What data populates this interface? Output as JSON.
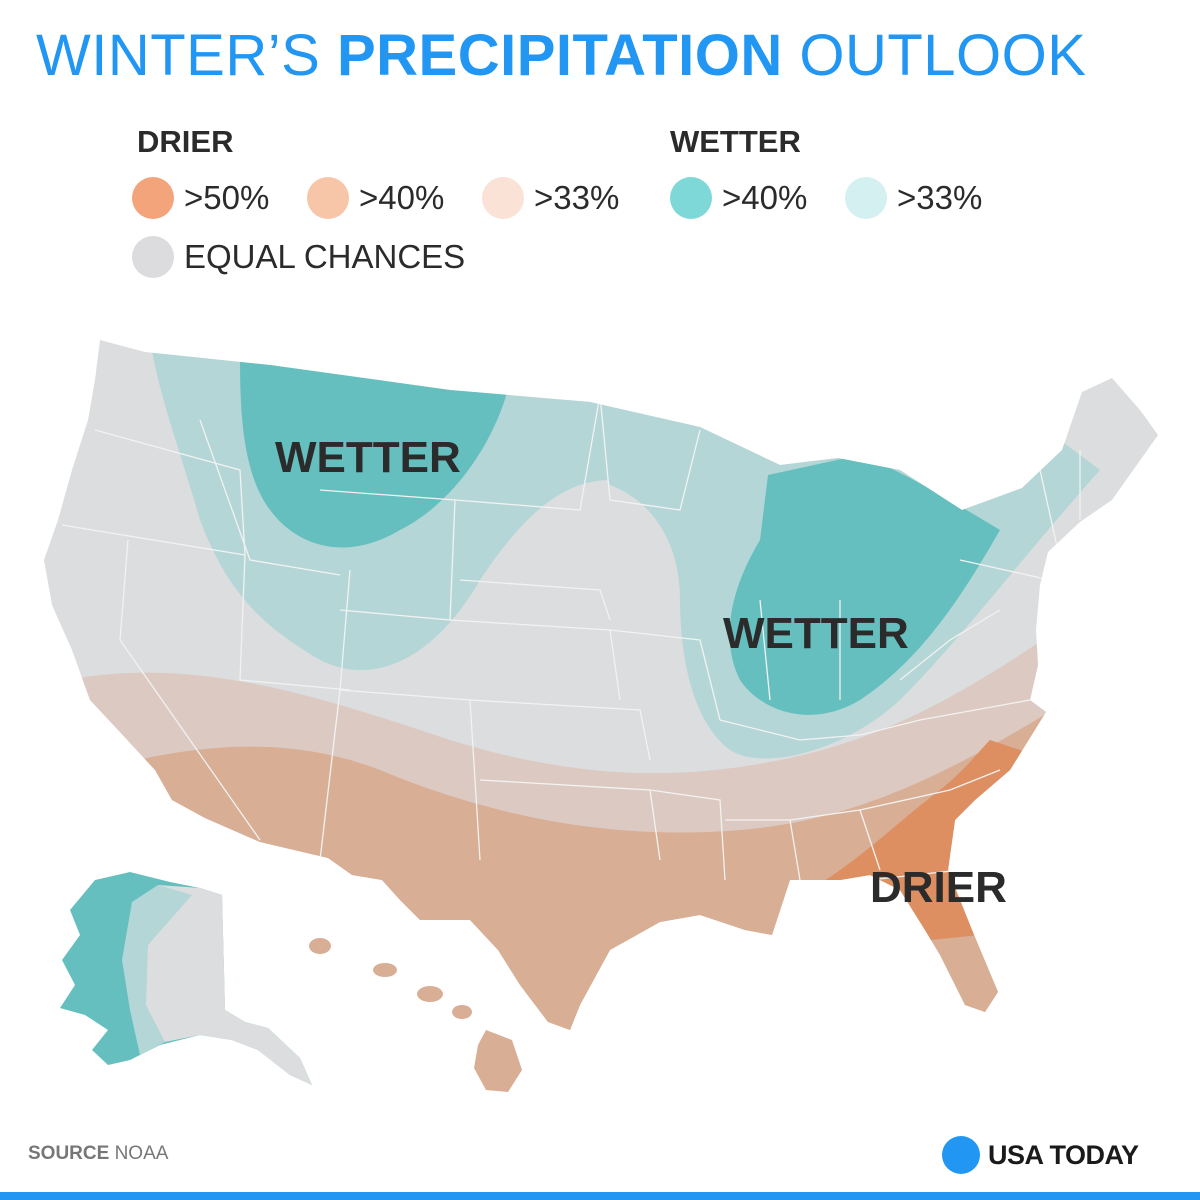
{
  "title": {
    "part1": "WINTER’S ",
    "part2": "PRECIPITATION",
    "part3": " OUTLOOK"
  },
  "legend": {
    "drier_label": "DRIER",
    "wetter_label": "WETTER",
    "items": [
      {
        "text": ">50%",
        "color": "#f4a47a"
      },
      {
        "text": ">40%",
        "color": "#f7c6a8"
      },
      {
        "text": ">33%",
        "color": "#fbe2d6"
      },
      {
        "text": ">40%",
        "color": "#7fd8d8"
      },
      {
        "text": ">33%",
        "color": "#d4f0f0"
      }
    ],
    "equal": {
      "text": "EQUAL CHANCES",
      "color": "#dcdcde"
    }
  },
  "map": {
    "labels": {
      "wetter_nw": "WETTER",
      "wetter_ohio": "WETTER",
      "drier_se": "DRIER"
    },
    "colors": {
      "equal": "#dcdddf",
      "wet33": "#b5d6d6",
      "wet40": "#66bfbf",
      "dry33": "#dccac2",
      "dry40": "#d8ae95",
      "dry50": "#dd8f62",
      "border": "#f2f2f2"
    }
  },
  "footer": {
    "source_label": "SOURCE",
    "source_name": " NOAA",
    "brand": "USA TODAY",
    "brand_color": "#2196f3"
  }
}
